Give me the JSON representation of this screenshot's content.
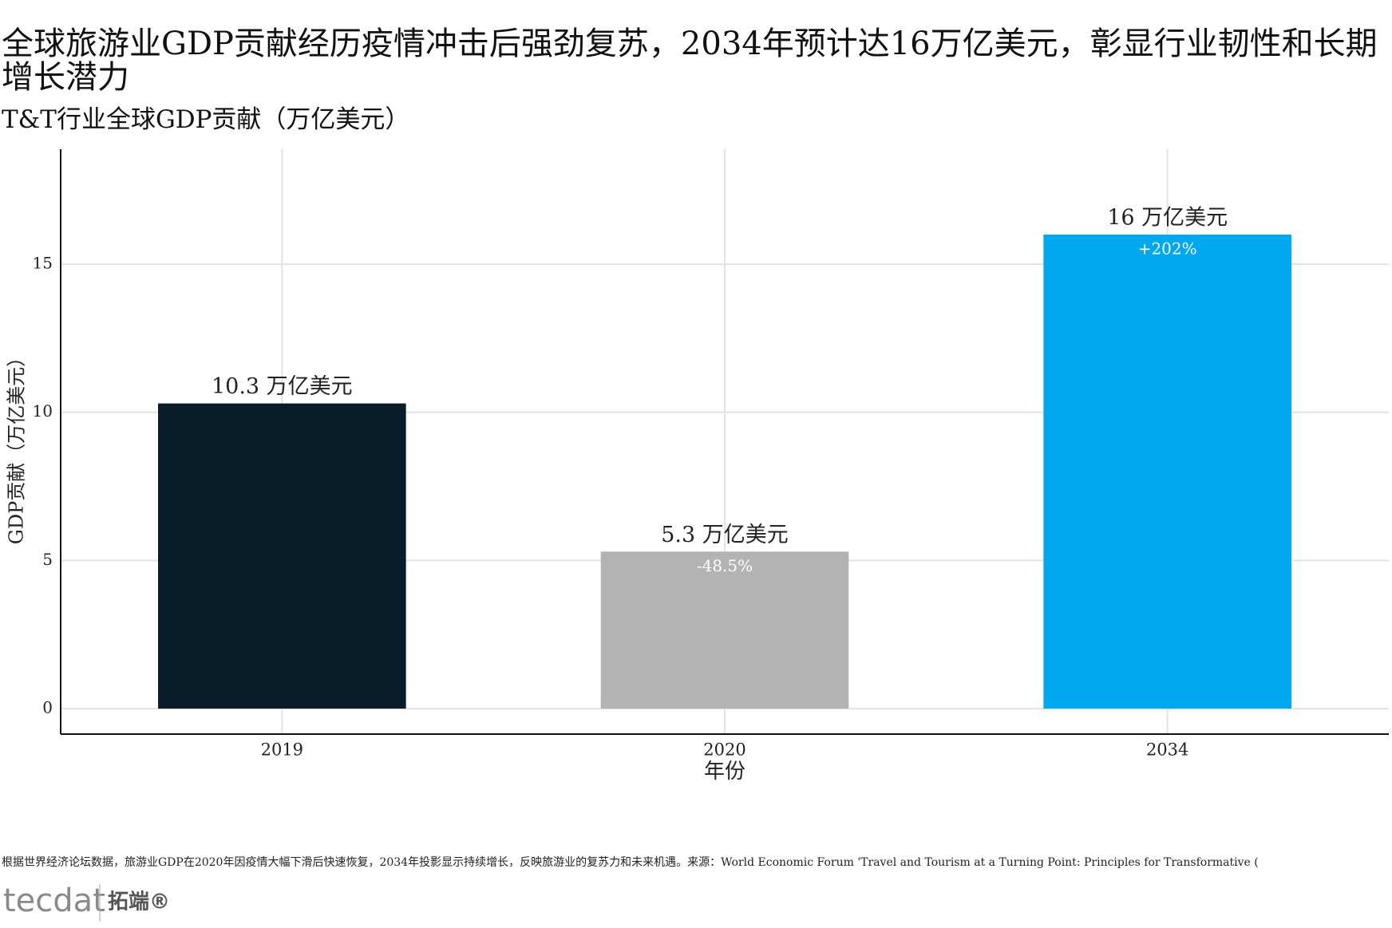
{
  "chart_data": {
    "type": "bar",
    "title": "全球旅游业GDP贡献经历疫情冲击后强劲复苏，2034年预计达16万亿美元，彰显行业韧性和长期增长潜力",
    "subtitle": "T&T行业全球GDP贡献（万亿美元）",
    "x_label": "年份",
    "y_label": "GDP贡献（万亿美元）",
    "categories": [
      "2019",
      "2020",
      "2034"
    ],
    "values": [
      10.3,
      5.3,
      16
    ],
    "value_labels": [
      "10.3 万亿美元",
      "5.3 万亿美元",
      "16 万亿美元"
    ],
    "change_labels": [
      null,
      "-48.5%",
      "+202%"
    ],
    "colors": [
      "#0a1c28",
      "#b3b3b3",
      "#00a8f0"
    ],
    "ylim": [
      -0.86,
      18.88
    ],
    "yticks": [
      0,
      5,
      10,
      15
    ],
    "grid": true
  },
  "footnote": "根据世界经济论坛数据，旅游业GDP在2020年因疫情大幅下滑后快速恢复，2034年投影显示持续增长，反映旅游业的复苏力和未来机遇。来源：World Economic Forum 'Travel and Tourism at a Turning Point: Principles for Transformative (",
  "logo": {
    "brand": "tecdat",
    "name": "拓端®"
  }
}
